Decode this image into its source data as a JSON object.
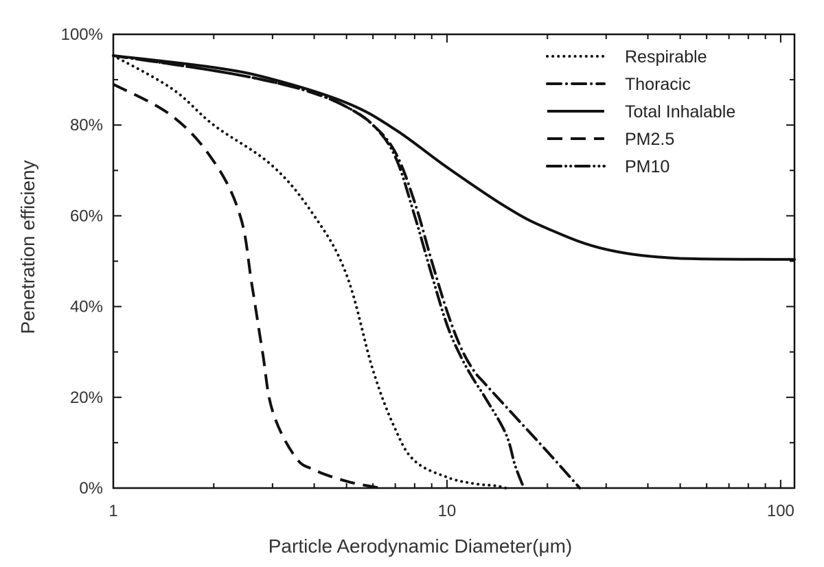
{
  "chart_data": {
    "type": "line",
    "title": "",
    "xlabel": "Particle Aerodynamic Diameter(μm)",
    "ylabel": "Penetration efficieny",
    "xscale": "log",
    "xlim": [
      1,
      110
    ],
    "ylim": [
      0,
      100
    ],
    "x_ticks": [
      {
        "value": 1,
        "label": "1"
      },
      {
        "value": 10,
        "label": "10"
      },
      {
        "value": 100,
        "label": "100"
      }
    ],
    "y_ticks": [
      {
        "value": 0,
        "label": "0%"
      },
      {
        "value": 20,
        "label": "20%"
      },
      {
        "value": 40,
        "label": "40%"
      },
      {
        "value": 60,
        "label": "60%"
      },
      {
        "value": 80,
        "label": "80%"
      },
      {
        "value": 100,
        "label": "100%"
      }
    ],
    "grid": false,
    "legend_position": "top-right",
    "series": [
      {
        "name": "Respirable",
        "dash": "dotted",
        "color": "#111111",
        "points": [
          [
            1,
            95.3
          ],
          [
            1.5,
            88
          ],
          [
            2,
            80
          ],
          [
            3,
            71
          ],
          [
            4,
            60
          ],
          [
            5,
            47
          ],
          [
            6,
            26
          ],
          [
            7,
            13
          ],
          [
            8,
            6
          ],
          [
            10,
            2.4
          ],
          [
            12,
            1
          ],
          [
            14,
            0.5
          ],
          [
            15,
            0
          ]
        ]
      },
      {
        "name": "Thoracic",
        "dash": "dashdot",
        "color": "#111111",
        "points": [
          [
            1,
            95.3
          ],
          [
            2,
            92
          ],
          [
            3,
            89.5
          ],
          [
            4,
            87
          ],
          [
            5,
            84
          ],
          [
            6,
            80
          ],
          [
            7,
            74
          ],
          [
            8,
            63
          ],
          [
            9,
            50
          ],
          [
            10,
            39
          ],
          [
            11,
            31
          ],
          [
            12,
            26
          ],
          [
            13,
            23
          ],
          [
            15,
            18
          ],
          [
            20,
            8
          ],
          [
            25,
            0
          ]
        ]
      },
      {
        "name": "Total Inhalable",
        "dash": "solid",
        "color": "#111111",
        "points": [
          [
            1,
            95.3
          ],
          [
            2,
            92.7
          ],
          [
            3,
            90.1
          ],
          [
            5,
            84.9
          ],
          [
            7,
            79
          ],
          [
            10,
            70.7
          ],
          [
            15,
            62
          ],
          [
            20,
            57.2
          ],
          [
            30,
            52.6
          ],
          [
            50,
            50.6
          ],
          [
            100,
            50.4
          ],
          [
            110,
            50.4
          ]
        ]
      },
      {
        "name": "PM2.5",
        "dash": "dashed",
        "color": "#111111",
        "points": [
          [
            1,
            89
          ],
          [
            1.5,
            82
          ],
          [
            2,
            72
          ],
          [
            2.4,
            60
          ],
          [
            2.6,
            45
          ],
          [
            2.8,
            30
          ],
          [
            3,
            17
          ],
          [
            3.5,
            7
          ],
          [
            4,
            4
          ],
          [
            5,
            1.5
          ],
          [
            6,
            0.3
          ],
          [
            6.3,
            0
          ]
        ]
      },
      {
        "name": "PM10",
        "dash": "dashdotdot",
        "color": "#111111",
        "points": [
          [
            1,
            95.3
          ],
          [
            2,
            92
          ],
          [
            3,
            89.5
          ],
          [
            4,
            87
          ],
          [
            5,
            84
          ],
          [
            6,
            80
          ],
          [
            7,
            73
          ],
          [
            8,
            60
          ],
          [
            9,
            47
          ],
          [
            10,
            36
          ],
          [
            11,
            29
          ],
          [
            12,
            24
          ],
          [
            13,
            20
          ],
          [
            15,
            12
          ],
          [
            16,
            5
          ],
          [
            17,
            0
          ]
        ]
      }
    ]
  }
}
